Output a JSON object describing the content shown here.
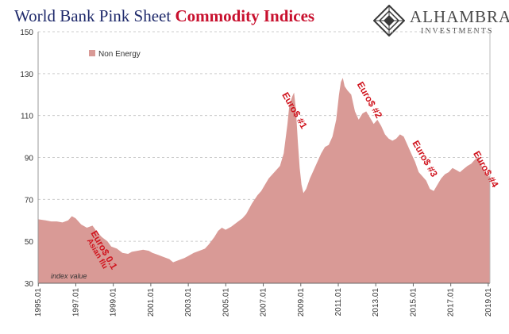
{
  "title_part1": "World Bank Pink Sheet",
  "title_part2": "Commodity Indices",
  "logo": {
    "name": "ALHAMBRA",
    "subtitle": "INVESTMENTS"
  },
  "chart_data": {
    "type": "area",
    "title": "World Bank Pink Sheet Commodity Indices",
    "ylabel": "index value",
    "ylim": [
      30,
      150
    ],
    "yticks": [
      30,
      50,
      70,
      90,
      110,
      130,
      150
    ],
    "xlim": [
      1995.0,
      2019.1
    ],
    "xticks": [
      "1995.01",
      "1997.01",
      "1999.01",
      "2001.01",
      "2003.01",
      "2005.01",
      "2007.01",
      "2009.01",
      "2011.01",
      "2013.01",
      "2015.01",
      "2017.01",
      "2019.01"
    ],
    "grid": true,
    "legend": "top-left",
    "series": [
      {
        "name": "Non Energy",
        "color": "#d99a96",
        "points": [
          [
            1995.0,
            60.5
          ],
          [
            1995.4,
            60
          ],
          [
            1995.7,
            59.5
          ],
          [
            1996.0,
            59.5
          ],
          [
            1996.3,
            59
          ],
          [
            1996.6,
            60
          ],
          [
            1996.8,
            62
          ],
          [
            1997.0,
            61
          ],
          [
            1997.3,
            58
          ],
          [
            1997.6,
            56.5
          ],
          [
            1997.9,
            57.5
          ],
          [
            1998.1,
            55
          ],
          [
            1998.4,
            52
          ],
          [
            1998.7,
            50
          ],
          [
            1998.9,
            47.5
          ],
          [
            1999.2,
            46.5
          ],
          [
            1999.5,
            44.5
          ],
          [
            1999.8,
            44
          ],
          [
            2000.0,
            45
          ],
          [
            2000.3,
            45.5
          ],
          [
            2000.6,
            46
          ],
          [
            2000.9,
            45.5
          ],
          [
            2001.1,
            44.5
          ],
          [
            2001.4,
            43.5
          ],
          [
            2001.7,
            42.5
          ],
          [
            2002.0,
            41.5
          ],
          [
            2002.2,
            40
          ],
          [
            2002.5,
            41
          ],
          [
            2002.8,
            42
          ],
          [
            2003.0,
            43
          ],
          [
            2003.3,
            44.5
          ],
          [
            2003.6,
            45.5
          ],
          [
            2003.9,
            46.5
          ],
          [
            2004.1,
            48.5
          ],
          [
            2004.4,
            52
          ],
          [
            2004.6,
            55
          ],
          [
            2004.8,
            56.5
          ],
          [
            2005.0,
            55.5
          ],
          [
            2005.3,
            57
          ],
          [
            2005.6,
            59
          ],
          [
            2005.9,
            61
          ],
          [
            2006.1,
            63
          ],
          [
            2006.4,
            68
          ],
          [
            2006.7,
            72
          ],
          [
            2006.9,
            74
          ],
          [
            2007.1,
            77
          ],
          [
            2007.3,
            80
          ],
          [
            2007.6,
            83
          ],
          [
            2007.9,
            86
          ],
          [
            2008.1,
            92
          ],
          [
            2008.3,
            106
          ],
          [
            2008.4,
            115
          ],
          [
            2008.55,
            119
          ],
          [
            2008.65,
            121
          ],
          [
            2008.75,
            113
          ],
          [
            2008.85,
            98
          ],
          [
            2008.95,
            85
          ],
          [
            2009.05,
            77
          ],
          [
            2009.15,
            73
          ],
          [
            2009.3,
            75
          ],
          [
            2009.5,
            80
          ],
          [
            2009.7,
            84
          ],
          [
            2009.9,
            88
          ],
          [
            2010.1,
            92
          ],
          [
            2010.3,
            95
          ],
          [
            2010.5,
            96
          ],
          [
            2010.7,
            100
          ],
          [
            2010.9,
            108
          ],
          [
            2011.05,
            120
          ],
          [
            2011.15,
            126
          ],
          [
            2011.25,
            128
          ],
          [
            2011.35,
            124
          ],
          [
            2011.5,
            122
          ],
          [
            2011.7,
            120
          ],
          [
            2011.9,
            112
          ],
          [
            2012.1,
            108
          ],
          [
            2012.3,
            111
          ],
          [
            2012.5,
            112
          ],
          [
            2012.7,
            109
          ],
          [
            2012.9,
            106
          ],
          [
            2013.1,
            108
          ],
          [
            2013.3,
            105
          ],
          [
            2013.5,
            101
          ],
          [
            2013.7,
            99
          ],
          [
            2013.9,
            98
          ],
          [
            2014.1,
            99
          ],
          [
            2014.3,
            101
          ],
          [
            2014.5,
            100
          ],
          [
            2014.7,
            96
          ],
          [
            2014.9,
            92
          ],
          [
            2015.1,
            88
          ],
          [
            2015.3,
            83
          ],
          [
            2015.5,
            81
          ],
          [
            2015.7,
            79
          ],
          [
            2015.9,
            75
          ],
          [
            2016.1,
            74
          ],
          [
            2016.3,
            77
          ],
          [
            2016.5,
            80
          ],
          [
            2016.7,
            82
          ],
          [
            2016.9,
            83
          ],
          [
            2017.1,
            85
          ],
          [
            2017.3,
            84
          ],
          [
            2017.5,
            83
          ],
          [
            2017.7,
            84.5
          ],
          [
            2017.9,
            86
          ],
          [
            2018.1,
            87
          ],
          [
            2018.3,
            89
          ],
          [
            2018.5,
            90
          ],
          [
            2018.7,
            85
          ],
          [
            2018.9,
            82
          ],
          [
            2019.0,
            81
          ],
          [
            2019.1,
            81
          ]
        ]
      }
    ],
    "annotations": [
      {
        "text": "Euro$ 0.1",
        "x": 1997.8,
        "y": 54,
        "angle": 60,
        "size": "large"
      },
      {
        "text": "Asian flu",
        "x": 1997.6,
        "y": 50.5,
        "angle": 60,
        "size": "small"
      },
      {
        "text": "Euro$ #1",
        "x": 2008.0,
        "y": 120,
        "angle": 60,
        "size": "large"
      },
      {
        "text": "Euro$ #2",
        "x": 2012.0,
        "y": 125,
        "angle": 60,
        "size": "large"
      },
      {
        "text": "Euro$ #3",
        "x": 2014.95,
        "y": 97,
        "angle": 60,
        "size": "large"
      },
      {
        "text": "Euro$ #4",
        "x": 2018.2,
        "y": 92,
        "angle": 60,
        "size": "large"
      }
    ]
  }
}
